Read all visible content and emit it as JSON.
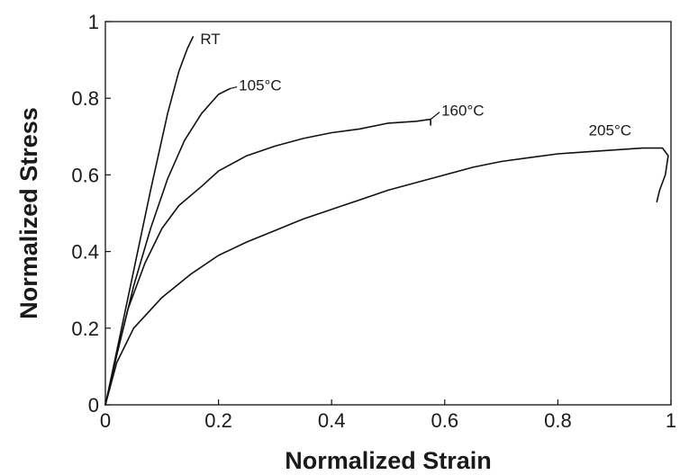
{
  "chart_data": {
    "type": "line",
    "title": "",
    "xlabel": "Normalized Strain",
    "ylabel": "Normalized Stress",
    "xlim": [
      0,
      1
    ],
    "ylim": [
      0,
      1
    ],
    "xticks": [
      "0",
      "0.2",
      "0.4",
      "0.6",
      "0.8",
      "1"
    ],
    "yticks": [
      "0",
      "0.2",
      "0.4",
      "0.6",
      "0.8",
      "1"
    ],
    "grid": false,
    "legend": "none",
    "series": [
      {
        "name": "RT",
        "x": [
          0,
          0.02,
          0.05,
          0.08,
          0.11,
          0.13,
          0.145,
          0.155
        ],
        "y": [
          0,
          0.14,
          0.35,
          0.56,
          0.76,
          0.87,
          0.93,
          0.96
        ]
      },
      {
        "name": "105°C",
        "x": [
          0,
          0.02,
          0.05,
          0.08,
          0.11,
          0.14,
          0.17,
          0.2,
          0.22
        ],
        "y": [
          0,
          0.13,
          0.31,
          0.46,
          0.59,
          0.69,
          0.76,
          0.81,
          0.825
        ]
      },
      {
        "name": "160°C",
        "x": [
          0,
          0.02,
          0.04,
          0.07,
          0.1,
          0.13,
          0.17,
          0.2,
          0.25,
          0.3,
          0.35,
          0.4,
          0.45,
          0.5,
          0.55,
          0.575,
          0.575
        ],
        "y": [
          0,
          0.13,
          0.25,
          0.37,
          0.46,
          0.52,
          0.57,
          0.61,
          0.65,
          0.675,
          0.695,
          0.71,
          0.72,
          0.735,
          0.74,
          0.745,
          0.73
        ]
      },
      {
        "name": "205°C",
        "x": [
          0,
          0.02,
          0.05,
          0.1,
          0.15,
          0.2,
          0.25,
          0.3,
          0.35,
          0.4,
          0.45,
          0.5,
          0.55,
          0.6,
          0.65,
          0.7,
          0.75,
          0.8,
          0.85,
          0.9,
          0.95,
          0.985,
          0.995,
          0.99,
          0.98,
          0.975
        ],
        "y": [
          0,
          0.11,
          0.2,
          0.28,
          0.34,
          0.39,
          0.425,
          0.455,
          0.485,
          0.51,
          0.535,
          0.56,
          0.58,
          0.6,
          0.62,
          0.635,
          0.645,
          0.655,
          0.66,
          0.665,
          0.67,
          0.67,
          0.65,
          0.6,
          0.56,
          0.53
        ]
      }
    ]
  }
}
